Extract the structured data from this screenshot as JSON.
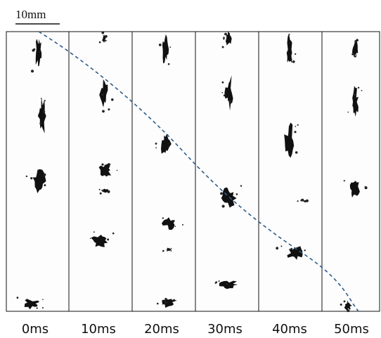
{
  "scale_label": "10mm",
  "panels": [
    {
      "label": "0ms"
    },
    {
      "label": "10ms"
    },
    {
      "label": "20ms"
    },
    {
      "label": "30ms"
    },
    {
      "label": "40ms"
    },
    {
      "label": "50ms"
    }
  ]
}
